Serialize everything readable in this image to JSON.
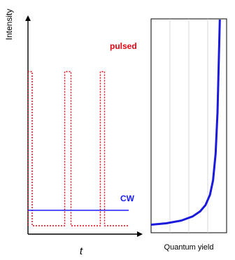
{
  "chart_data": [
    {
      "type": "line",
      "title": "",
      "ylabel": "Intensity",
      "xlabel": "t",
      "grid": false,
      "legend": "none (inline labels)",
      "ylim": [
        0,
        1
      ],
      "series": [
        {
          "name": "pulsed",
          "style": "dotted",
          "color": "#e3000f",
          "x": [
            0.0,
            0.0,
            0.04,
            0.04,
            0.35,
            0.35,
            0.41,
            0.41,
            0.69,
            0.69,
            0.73,
            0.73,
            0.96
          ],
          "y": [
            0.0,
            0.9,
            0.9,
            0.0,
            0.0,
            0.9,
            0.9,
            0.0,
            0.0,
            0.9,
            0.9,
            0.0,
            0.0
          ]
        },
        {
          "name": "CW",
          "style": "solid",
          "color": "#1a1aff",
          "x": [
            0.0,
            0.96
          ],
          "y": [
            0.09,
            0.09
          ]
        }
      ],
      "inline_labels": {
        "pulsed": "pulsed",
        "cw": "CW"
      }
    },
    {
      "type": "line",
      "title": "",
      "xlabel": "Quantum yield",
      "ylabel": "",
      "grid": false,
      "xgrid_lines": 3,
      "series": [
        {
          "name": "",
          "color": "#1a1add",
          "x": [
            0.0,
            0.2,
            0.4,
            0.55,
            0.65,
            0.72,
            0.78,
            0.82,
            0.855,
            0.88,
            0.91
          ],
          "y": [
            0.005,
            0.012,
            0.025,
            0.045,
            0.07,
            0.1,
            0.15,
            0.22,
            0.35,
            0.55,
            1.0
          ]
        }
      ]
    }
  ]
}
